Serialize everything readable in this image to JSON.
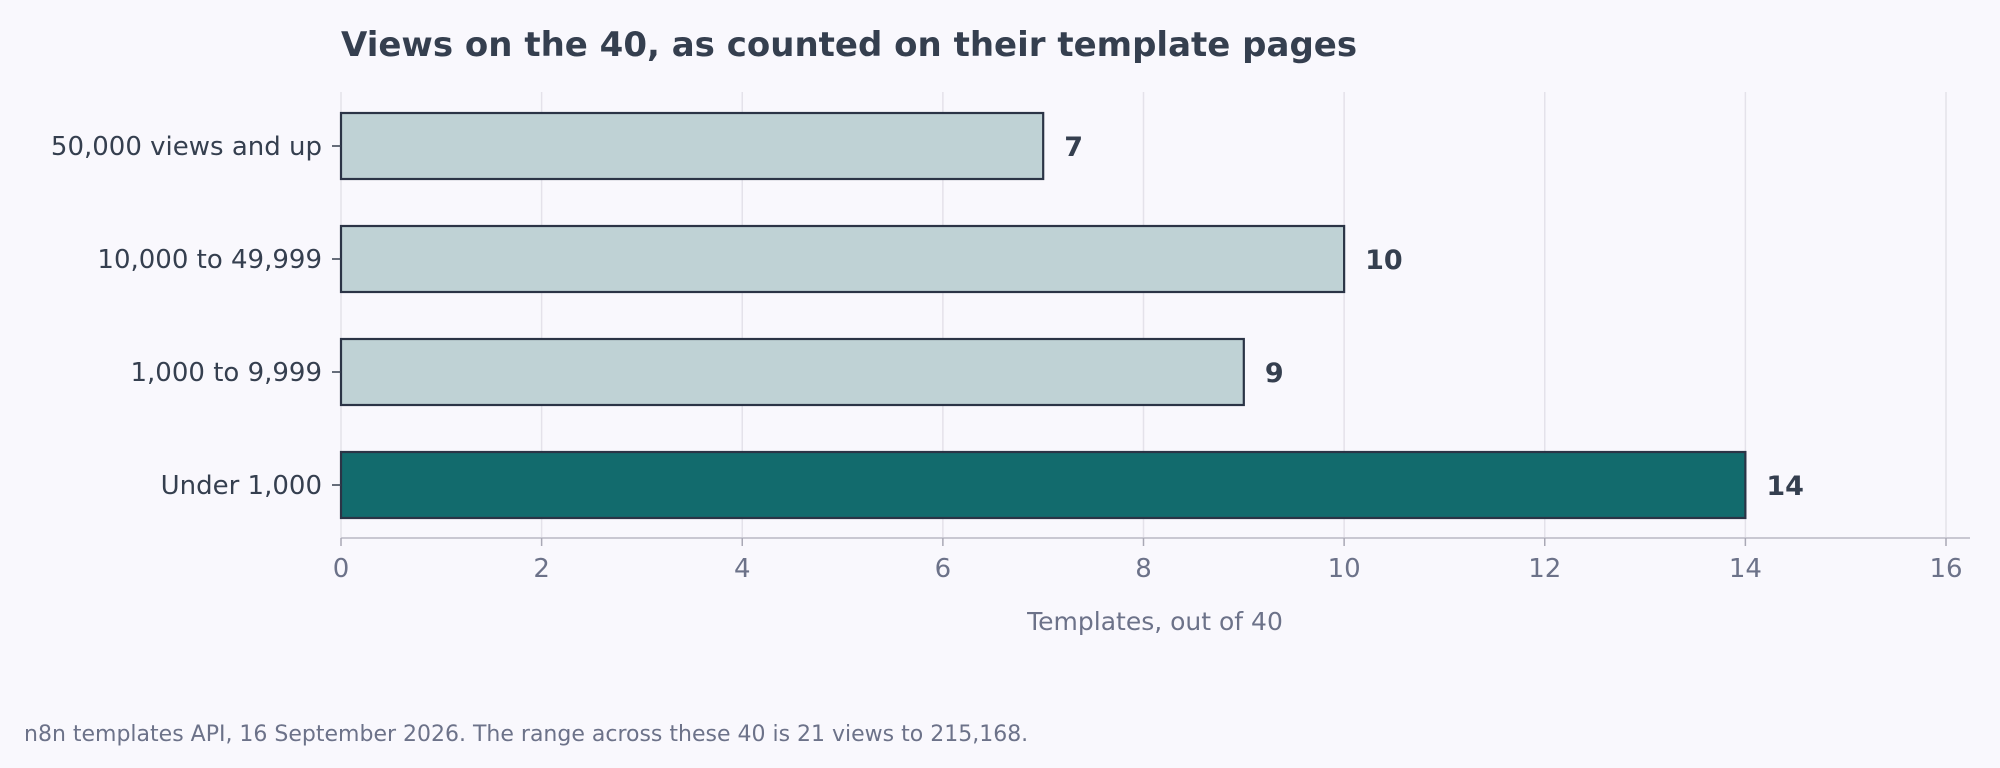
{
  "chart_data": {
    "type": "bar",
    "orientation": "horizontal",
    "title": "Views on the 40, as counted on their template pages",
    "xlabel": "Templates, out of 40",
    "ylabel": "",
    "xlim": [
      0,
      16
    ],
    "x_ticks": [
      0,
      2,
      4,
      6,
      8,
      10,
      12,
      14,
      16
    ],
    "grid": "vertical",
    "categories": [
      "50,000 views and up",
      "10,000 to 49,999",
      "1,000 to 9,999",
      "Under 1,000"
    ],
    "values": [
      7,
      10,
      9,
      14
    ],
    "value_labels": [
      "7",
      "10",
      "9",
      "14"
    ],
    "highlight_category": "Under 1,000",
    "colors": {
      "bar": "#bfd2d5",
      "highlight": "#126b6d",
      "bar_edge": "#2b3446",
      "grid": "#e4e2ea",
      "text": "#353f4f",
      "muted": "#6c7289",
      "background": "#f9f8fd"
    }
  },
  "caption": "n8n templates API, 16 September 2026. The range across these 40 is 21 views to 215,168."
}
